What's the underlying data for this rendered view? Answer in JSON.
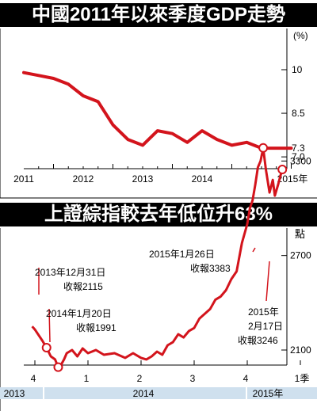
{
  "chart_data": [
    {
      "type": "line",
      "title": "中國2011年以來季度GDP走勢",
      "y_unit": "(%)",
      "y_ticks": [
        "10",
        "8.5",
        "7.3",
        "7.0"
      ],
      "ylim": [
        6.7,
        10.6
      ],
      "x_labels": [
        "2011",
        "2012",
        "2013",
        "2014",
        "2015年"
      ],
      "series": [
        {
          "color": "#d3141c",
          "x": [
            2010.5,
            2010.75,
            2011.0,
            2011.25,
            2011.5,
            2011.75,
            2012.0,
            2012.25,
            2012.5,
            2012.75,
            2013.0,
            2013.25,
            2013.5,
            2013.75,
            2014.0,
            2014.25,
            2014.5,
            2014.75,
            2015.0
          ],
          "values": [
            9.9,
            9.8,
            9.7,
            9.5,
            9.1,
            8.9,
            8.1,
            7.6,
            7.4,
            7.9,
            7.8,
            7.5,
            7.9,
            7.6,
            7.4,
            7.5,
            7.3,
            7.3,
            7.3
          ]
        }
      ],
      "grid": false
    },
    {
      "type": "line",
      "title": "上證綜指較去年低位升63%",
      "y_unit": "點",
      "y_ticks": [
        "3300",
        "2700",
        "2100"
      ],
      "ylim": [
        1900,
        3450
      ],
      "x_labels": [
        "4",
        "1",
        "2",
        "3",
        "4",
        "1季"
      ],
      "year_labels": [
        "2013",
        "2014",
        "2015年"
      ],
      "series": [
        {
          "color": "#d3141c",
          "x": [
            -0.05,
            0.0,
            0.06,
            0.14,
            0.22,
            0.3,
            0.38,
            0.44,
            0.5,
            0.55,
            0.6,
            0.7,
            0.8,
            0.9,
            1.0,
            1.15,
            1.3,
            1.5,
            1.7,
            1.85,
            2.0,
            2.1,
            2.2,
            2.3,
            2.4,
            2.5,
            2.6,
            2.7,
            2.8,
            2.9,
            3.0,
            3.1,
            3.2,
            3.3,
            3.4,
            3.5,
            3.6,
            3.7,
            3.8,
            3.9,
            4.0,
            4.05,
            4.1,
            4.15,
            4.2,
            4.25,
            4.3,
            4.35,
            4.42,
            4.48,
            4.52,
            4.58,
            4.62,
            4.66
          ],
          "values": [
            2250,
            2230,
            2200,
            2160,
            2115,
            2060,
            2040,
            1991,
            2010,
            2040,
            2080,
            2100,
            2060,
            2110,
            2080,
            2100,
            2070,
            2080,
            2050,
            2080,
            2050,
            2040,
            2060,
            2090,
            2070,
            2130,
            2150,
            2200,
            2180,
            2220,
            2240,
            2300,
            2330,
            2360,
            2420,
            2440,
            2480,
            2550,
            2600,
            2780,
            2900,
            3000,
            3050,
            3150,
            3260,
            3300,
            3383,
            3250,
            3100,
            3180,
            3080,
            3150,
            3200,
            3246
          ]
        }
      ],
      "annotations": [
        {
          "date": "2013年12月31日",
          "label": "收報2115",
          "x": 0.22,
          "value": 2115
        },
        {
          "date": "2014年1月20日",
          "label": "收報1991",
          "x": 0.44,
          "value": 1991
        },
        {
          "date": "2015年1月26日",
          "label": "收報3383",
          "x": 4.3,
          "value": 3383
        },
        {
          "date_lines": [
            "2015年",
            "2月17日"
          ],
          "label": "收報3246",
          "x": 4.66,
          "value": 3246
        }
      ],
      "grid": false
    }
  ]
}
